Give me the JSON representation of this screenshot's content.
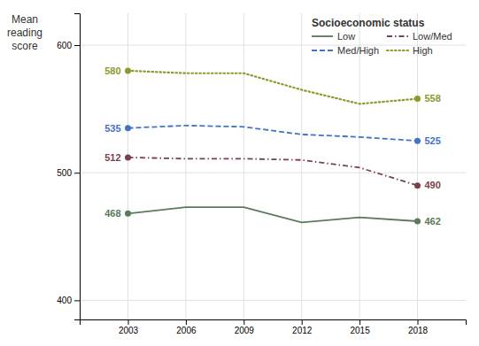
{
  "chart_data": {
    "type": "line",
    "y_label": "Mean\nreading\nscore",
    "legend_title": "Socioeconomic status",
    "legend": "upper right",
    "grid": true,
    "data_labels": true,
    "x": [
      2003,
      2006,
      2009,
      2012,
      2015,
      2018
    ],
    "xlim": [
      2000.5,
      2020.5
    ],
    "xticks": [
      2003,
      2006,
      2009,
      2012,
      2015,
      2018
    ],
    "ylim": [
      385,
      625
    ],
    "yticks": [
      400,
      500,
      600
    ],
    "series": [
      {
        "name": "Low",
        "color": "#5a7a5a",
        "line_style": "solid",
        "marker": "circle",
        "values": [
          468,
          473,
          473,
          461,
          465,
          462
        ],
        "value_labels": [
          "468",
          null,
          null,
          null,
          null,
          "462"
        ]
      },
      {
        "name": "Low/Med",
        "color": "#7b3f4e",
        "line_style": "dashdot",
        "marker": "circle",
        "values": [
          512,
          511,
          511,
          510,
          504,
          490
        ],
        "value_labels": [
          "512",
          null,
          null,
          null,
          null,
          "490"
        ]
      },
      {
        "name": "Med/High",
        "color": "#4472c4",
        "line_style": "dashed",
        "marker": "circle",
        "values": [
          535,
          537,
          536,
          530,
          528,
          525
        ],
        "value_labels": [
          "535",
          null,
          null,
          null,
          null,
          "525"
        ]
      },
      {
        "name": "High",
        "color": "#8b9a2a",
        "line_style": "dotted",
        "marker": "circle",
        "values": [
          580,
          578,
          578,
          565,
          554,
          558
        ],
        "value_labels": [
          "580",
          null,
          null,
          null,
          null,
          "558"
        ]
      }
    ]
  }
}
